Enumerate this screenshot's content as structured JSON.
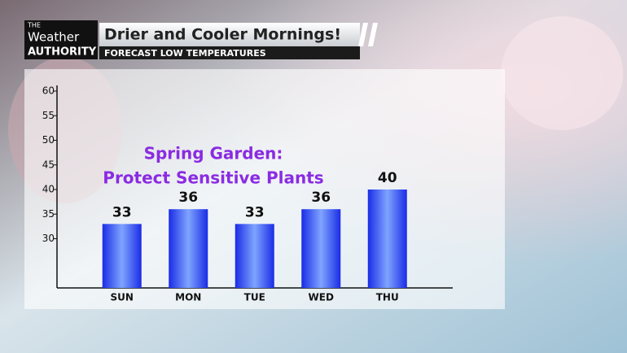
{
  "logo": {
    "line1": "THE",
    "line2": "Weather",
    "line3": "AUTHORITY"
  },
  "chart_data": {
    "type": "bar",
    "title": "Drier and Cooler Mornings!",
    "subtitle": "FORECAST LOW TEMPERATURES",
    "annotation": [
      "Spring Garden:",
      "Protect Sensitive Plants"
    ],
    "annotation_color": "#8a2be2",
    "categories": [
      "SUN",
      "MON",
      "TUE",
      "WED",
      "THU"
    ],
    "values": [
      33,
      36,
      33,
      36,
      40
    ],
    "color": "#1a2ce6",
    "ylim": [
      20,
      60
    ],
    "yticks": [
      30,
      35,
      40,
      45,
      50,
      55,
      60
    ],
    "grid": false
  }
}
